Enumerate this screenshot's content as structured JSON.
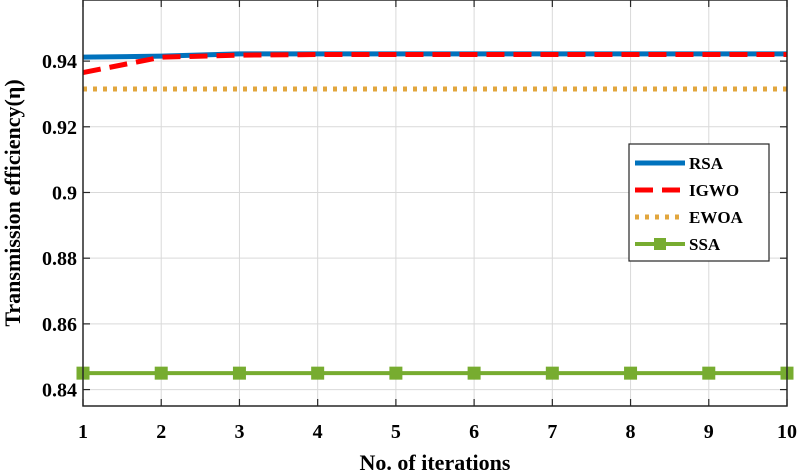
{
  "chart_data": {
    "type": "line",
    "title": "",
    "xlabel": "No. of iterations",
    "ylabel": "Transmission efficiency(η)",
    "x": [
      1,
      2,
      3,
      4,
      5,
      6,
      7,
      8,
      9,
      10
    ],
    "xlim": [
      1,
      10
    ],
    "ylim": [
      0.835,
      0.9586
    ],
    "xticks": [
      "1",
      "2",
      "3",
      "4",
      "5",
      "6",
      "7",
      "8",
      "9",
      "10"
    ],
    "yticks": [
      {
        "value": 0.84,
        "label": "0.84"
      },
      {
        "value": 0.86,
        "label": "0.86"
      },
      {
        "value": 0.88,
        "label": "0.88"
      },
      {
        "value": 0.9,
        "label": "0.9"
      },
      {
        "value": 0.92,
        "label": "0.92"
      },
      {
        "value": 0.94,
        "label": "0.94"
      }
    ],
    "grid": true,
    "legend_position": "right",
    "series": [
      {
        "name": "RSA",
        "color": "#0072BD",
        "style": "solid",
        "values": [
          0.9412,
          0.9415,
          0.9422,
          0.9422,
          0.9422,
          0.9422,
          0.9422,
          0.9422,
          0.9422,
          0.9422
        ]
      },
      {
        "name": "IGWO",
        "color": "#FF0000",
        "style": "dashed",
        "values": [
          0.9365,
          0.9412,
          0.9418,
          0.942,
          0.942,
          0.942,
          0.942,
          0.942,
          0.942,
          0.942
        ]
      },
      {
        "name": "EWOA",
        "color": "#E2A63D",
        "style": "dotted",
        "values": [
          0.9315,
          0.9315,
          0.9315,
          0.9315,
          0.9315,
          0.9315,
          0.9315,
          0.9315,
          0.9315,
          0.9315
        ]
      },
      {
        "name": "SSA",
        "color": "#77AC30",
        "style": "solid-square-markers",
        "values": [
          0.845,
          0.845,
          0.845,
          0.845,
          0.845,
          0.845,
          0.845,
          0.845,
          0.845,
          0.845
        ]
      }
    ]
  }
}
